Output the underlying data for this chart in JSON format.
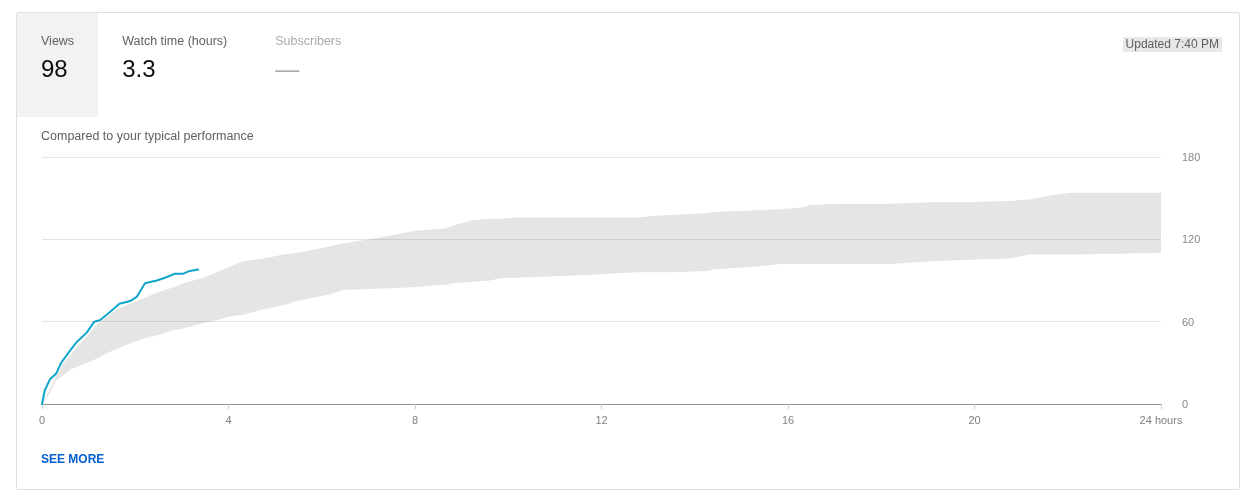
{
  "chart_data": {
    "type": "line",
    "subtitle": "Compared to your typical performance",
    "annotations": [
      "Views",
      "98",
      "Watch time (hours)",
      "3.3",
      "Subscribers",
      "—",
      "Updated 7:40 PM",
      "SEE MORE"
    ],
    "series": [
      {
        "color": "#e5e5e5",
        "x": [
          0,
          0.17,
          0.3,
          0.46,
          0.6,
          0.82,
          1.03,
          1.17,
          1.46,
          1.6,
          1.89,
          2.03,
          2.32,
          2.46,
          2.82,
          3.03,
          3.46,
          3.75,
          4.03,
          4.32,
          4.75,
          5.18,
          5.46,
          6.18,
          6.46,
          7.18,
          7.96,
          8.68,
          8.82,
          9.25,
          9.61,
          9.89,
          10.18,
          11.68,
          12.75,
          13.11,
          13.54,
          14.25,
          14.4,
          15.26,
          15.83,
          16.26,
          16.47,
          17.11,
          18.19,
          19.05,
          19.76,
          20.76,
          21.19,
          21.62,
          22.05,
          24
        ],
        "values": [
          null,
          null,
          null,
          null,
          null,
          null,
          null,
          null,
          null,
          null,
          null,
          null,
          null,
          null,
          null,
          null,
          null,
          null,
          null,
          null,
          null,
          null,
          null,
          null,
          null,
          null,
          null,
          null,
          null,
          null,
          null,
          null,
          null,
          null,
          null,
          null,
          null,
          null,
          null,
          null,
          null,
          null,
          null,
          null,
          null,
          null,
          null,
          null,
          null,
          null,
          null,
          null
        ],
        "lower": [
          0,
          8,
          17,
          21,
          25,
          28,
          31,
          33,
          38,
          40,
          44,
          46,
          49,
          50,
          54,
          55,
          59,
          61,
          64,
          65,
          69,
          72,
          75,
          80,
          83,
          84,
          85,
          87,
          88,
          89,
          90,
          92,
          92,
          94,
          96,
          96,
          96,
          97,
          98,
          100,
          102,
          102,
          102,
          102,
          102,
          104,
          105,
          106,
          109,
          109,
          109,
          110
        ],
        "upper": [
          0,
          11,
          20,
          30,
          35,
          44,
          52,
          58,
          65,
          69,
          73,
          75,
          79,
          81,
          85,
          88,
          92,
          96,
          100,
          104,
          106,
          109,
          110,
          115,
          117,
          121,
          126,
          128,
          130,
          134,
          135,
          135,
          136,
          136,
          136,
          137,
          138,
          139,
          140,
          141,
          142,
          143,
          145,
          146,
          146,
          147,
          147,
          148,
          149,
          152,
          154,
          154
        ]
      },
      {
        "color": "#0ea5c8",
        "x": [
          0,
          0.06,
          0.17,
          0.3,
          0.41,
          0.56,
          0.74,
          0.96,
          1.12,
          1.24,
          1.42,
          1.66,
          1.89,
          2.03,
          2.21,
          2.46,
          2.64,
          2.85,
          3.03,
          3.17,
          3.35
        ],
        "values": [
          0,
          10,
          18,
          22,
          30,
          37,
          45,
          52,
          60,
          61,
          66,
          73,
          75,
          78,
          88,
          90,
          92,
          95,
          95,
          97,
          98
        ]
      }
    ],
    "xlim": [
      0,
      24
    ],
    "xticks": [
      0,
      4,
      8,
      12,
      16,
      20,
      {
        "value": 24,
        "label": "24 hours"
      }
    ],
    "ylim": [
      0,
      180
    ],
    "yticks": [
      0,
      60,
      120,
      180
    ],
    "grid": "y",
    "marker": "none"
  }
}
